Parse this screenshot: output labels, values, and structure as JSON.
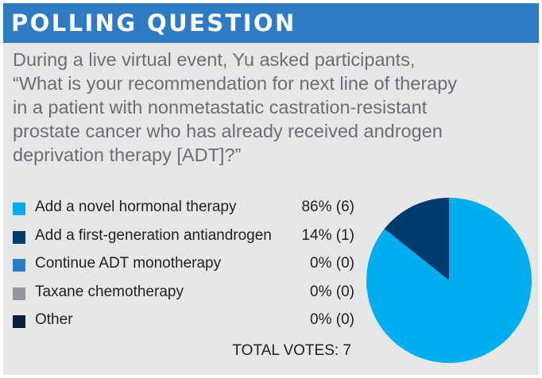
{
  "header": {
    "title": "POLLING QUESTION"
  },
  "question": {
    "lines": [
      "During a live virtual event, Yu asked participants,",
      "“What is your recommendation for next line of therapy",
      "in a patient with nonmetastatic castration-resistant",
      "prostate cancer who has already received androgen",
      "deprivation therapy [ADT]?”"
    ]
  },
  "legend": {
    "items": [
      {
        "label": "Add a novel hormonal therapy",
        "pct": "86% (6)",
        "color": "#00aeef"
      },
      {
        "label": "Add a first-generation antiandrogen",
        "pct": "14% (1)",
        "color": "#003a70"
      },
      {
        "label": "Continue ADT monotherapy",
        "pct": "0% (0)",
        "color": "#2f7bc3"
      },
      {
        "label": "Taxane chemotherapy",
        "pct": "0% (0)",
        "color": "#939598"
      },
      {
        "label": "Other",
        "pct": "0% (0)",
        "color": "#0a1f3c"
      }
    ]
  },
  "total": {
    "label": "TOTAL VOTES: 7"
  },
  "chart_data": {
    "type": "pie",
    "categories": [
      "Add a novel hormonal therapy",
      "Add a first-generation antiandrogen",
      "Continue ADT monotherapy",
      "Taxane chemotherapy",
      "Other"
    ],
    "values": [
      6,
      1,
      0,
      0,
      0
    ],
    "percentages": [
      86,
      14,
      0,
      0,
      0
    ],
    "colors": [
      "#00aeef",
      "#003a70",
      "#2f7bc3",
      "#939598",
      "#0a1f3c"
    ],
    "title": "POLLING QUESTION",
    "total": 7,
    "start": "12 o'clock",
    "direction": "clockwise",
    "legend_placement": "left"
  }
}
